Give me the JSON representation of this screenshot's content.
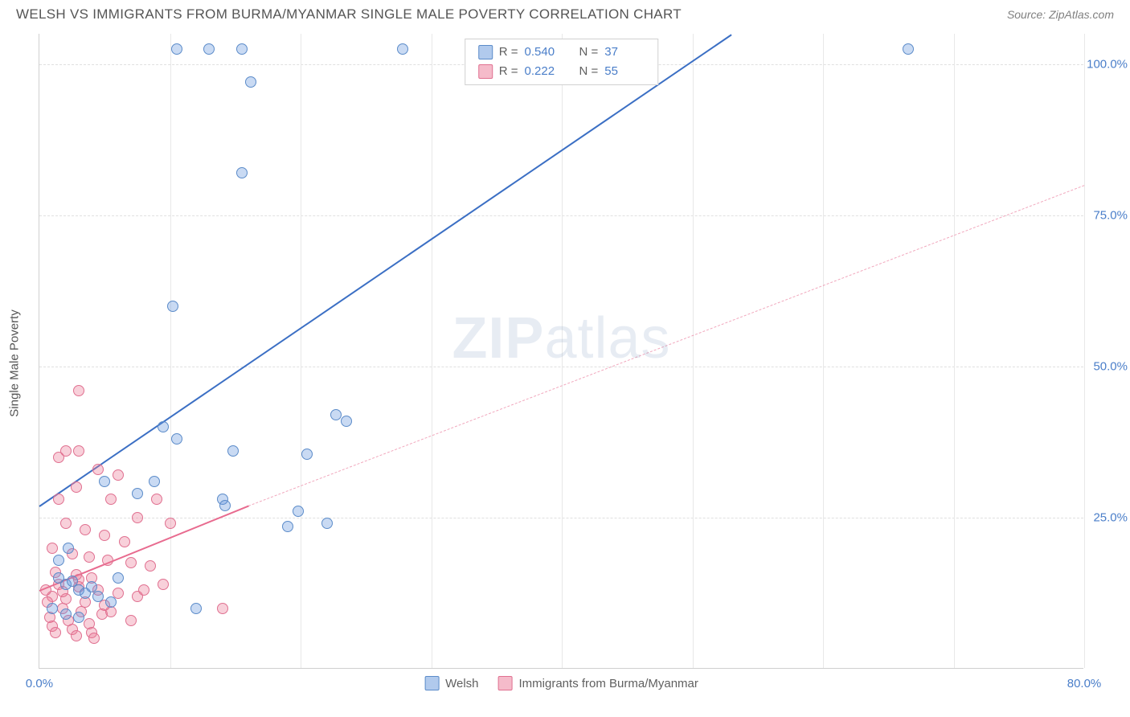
{
  "header": {
    "title": "WELSH VS IMMIGRANTS FROM BURMA/MYANMAR SINGLE MALE POVERTY CORRELATION CHART",
    "source_prefix": "Source: ",
    "source_name": "ZipAtlas.com"
  },
  "y_axis_title": "Single Male Poverty",
  "watermark": {
    "zip": "ZIP",
    "atlas": "atlas"
  },
  "chart": {
    "type": "scatter",
    "xlim": [
      0,
      80
    ],
    "ylim": [
      0,
      105
    ],
    "x_ticks": [
      0,
      10,
      20,
      30,
      40,
      50,
      60,
      70,
      80
    ],
    "x_tick_labels": {
      "0": "0.0%",
      "80": "80.0%"
    },
    "y_ticks": [
      25,
      50,
      75,
      100
    ],
    "y_tick_labels": {
      "25": "25.0%",
      "50": "50.0%",
      "75": "75.0%",
      "100": "100.0%"
    },
    "background_color": "#ffffff",
    "grid_color": "#e0e0e0",
    "axis_color": "#d0d0d0",
    "tick_label_color": "#4a7ec9",
    "point_radius": 7
  },
  "series": {
    "blue": {
      "label": "Welsh",
      "R": "0.540",
      "N": "37",
      "color_fill": "rgba(100,149,220,0.35)",
      "color_stroke": "#5b8bc9",
      "line_color": "#3b6fc4",
      "regression": {
        "x1": 0,
        "y1": 27,
        "x2": 53,
        "y2": 105
      },
      "regression_ext": {
        "x1": 53,
        "y1": 105,
        "x2": 53,
        "y2": 105
      },
      "points": [
        [
          10.5,
          102.5
        ],
        [
          13,
          102.5
        ],
        [
          15.5,
          102.5
        ],
        [
          27.8,
          102.5
        ],
        [
          66.5,
          102.5
        ],
        [
          16.2,
          97
        ],
        [
          15.5,
          82
        ],
        [
          10.2,
          60
        ],
        [
          22.7,
          42
        ],
        [
          23.5,
          41
        ],
        [
          9.5,
          40
        ],
        [
          10.5,
          38
        ],
        [
          14.8,
          36
        ],
        [
          20.5,
          35.5
        ],
        [
          5,
          31
        ],
        [
          8.8,
          31
        ],
        [
          7.5,
          29
        ],
        [
          14,
          28
        ],
        [
          14.2,
          27
        ],
        [
          19.8,
          26
        ],
        [
          22,
          24
        ],
        [
          19,
          23.5
        ],
        [
          1.5,
          15
        ],
        [
          2,
          14
        ],
        [
          2.5,
          14.5
        ],
        [
          3,
          13
        ],
        [
          3.5,
          12.5
        ],
        [
          4,
          13.5
        ],
        [
          4.5,
          12
        ],
        [
          5.5,
          11
        ],
        [
          6,
          15
        ],
        [
          1,
          10
        ],
        [
          2,
          9
        ],
        [
          3,
          8.5
        ],
        [
          12,
          10
        ],
        [
          1.5,
          18
        ],
        [
          2.2,
          20
        ]
      ]
    },
    "pink": {
      "label": "Immigrants from Burma/Myanmar",
      "R": "0.222",
      "N": "55",
      "color_fill": "rgba(235,120,150,0.35)",
      "color_stroke": "#e07090",
      "line_color": "#e86b8f",
      "regression": {
        "x1": 0,
        "y1": 13,
        "x2": 16,
        "y2": 27
      },
      "regression_ext": {
        "x1": 16,
        "y1": 27,
        "x2": 80,
        "y2": 80
      },
      "points": [
        [
          3,
          46
        ],
        [
          2,
          36
        ],
        [
          3,
          36
        ],
        [
          1.5,
          35
        ],
        [
          4.5,
          33
        ],
        [
          6,
          32
        ],
        [
          2.8,
          30
        ],
        [
          1.5,
          28
        ],
        [
          5.5,
          28
        ],
        [
          7.5,
          25
        ],
        [
          9,
          28
        ],
        [
          10,
          24
        ],
        [
          2,
          24
        ],
        [
          3.5,
          23
        ],
        [
          5,
          22
        ],
        [
          6.5,
          21
        ],
        [
          1,
          20
        ],
        [
          2.5,
          19
        ],
        [
          3.8,
          18.5
        ],
        [
          5.2,
          18
        ],
        [
          7,
          17.5
        ],
        [
          8.5,
          17
        ],
        [
          1.2,
          16
        ],
        [
          2.8,
          15.5
        ],
        [
          4,
          15
        ],
        [
          1.5,
          14
        ],
        [
          3,
          13.5
        ],
        [
          4.5,
          13
        ],
        [
          6,
          12.5
        ],
        [
          7.5,
          12
        ],
        [
          1,
          12
        ],
        [
          2,
          11.5
        ],
        [
          3.5,
          11
        ],
        [
          5,
          10.5
        ],
        [
          1.8,
          10
        ],
        [
          3.2,
          9.5
        ],
        [
          4.8,
          9
        ],
        [
          0.8,
          8.5
        ],
        [
          2.2,
          8
        ],
        [
          3.8,
          7.5
        ],
        [
          1,
          7
        ],
        [
          2.5,
          6.5
        ],
        [
          4,
          6
        ],
        [
          5.5,
          9.5
        ],
        [
          7,
          8
        ],
        [
          0.5,
          13
        ],
        [
          1.8,
          12.8
        ],
        [
          3,
          14.8
        ],
        [
          8,
          13
        ],
        [
          9.5,
          14
        ],
        [
          14,
          10
        ],
        [
          1.2,
          6
        ],
        [
          2.8,
          5.5
        ],
        [
          4.2,
          5
        ],
        [
          0.6,
          11
        ]
      ]
    }
  },
  "legend_top": {
    "r_label": "R =",
    "n_label": "N ="
  },
  "legend_bottom": {
    "items": [
      {
        "swatch": "blue",
        "key": "series.blue.label"
      },
      {
        "swatch": "pink",
        "key": "series.pink.label"
      }
    ]
  }
}
